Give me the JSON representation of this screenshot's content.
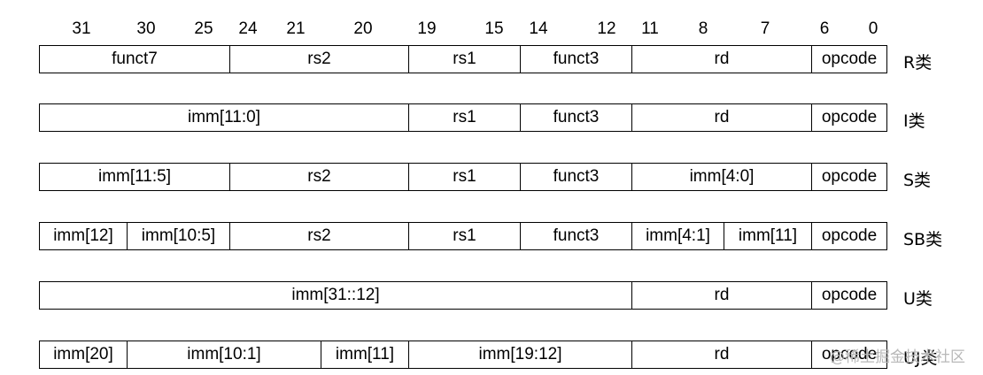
{
  "bit_numbers": [
    "31",
    "30",
    "25",
    "24",
    "21",
    "20",
    "19",
    "15",
    "14",
    "12",
    "11",
    "8",
    "7",
    "6",
    "0"
  ],
  "rows": [
    {
      "type": "R类",
      "cells": [
        "funct7",
        "rs2",
        "rs1",
        "funct3",
        "rd",
        "opcode"
      ]
    },
    {
      "type": "I类",
      "cells": [
        "imm[11:0]",
        "rs1",
        "funct3",
        "rd",
        "opcode"
      ]
    },
    {
      "type": "S类",
      "cells": [
        "imm[11:5]",
        "rs2",
        "rs1",
        "funct3",
        "imm[4:0]",
        "opcode"
      ]
    },
    {
      "type": "SB类",
      "cells": [
        "imm[12]",
        "imm[10:5]",
        "rs2",
        "rs1",
        "funct3",
        "imm[4:1]",
        "imm[11]",
        "opcode"
      ]
    },
    {
      "type": "U类",
      "cells": [
        "imm[31::12]",
        "rd",
        "opcode"
      ]
    },
    {
      "type": "UJ类",
      "cells": [
        "imm[20]",
        "imm[10:1]",
        "imm[11]",
        "imm[19:12]",
        "rd",
        "opcode"
      ]
    }
  ],
  "watermark": "@稀土掘金技术社区"
}
